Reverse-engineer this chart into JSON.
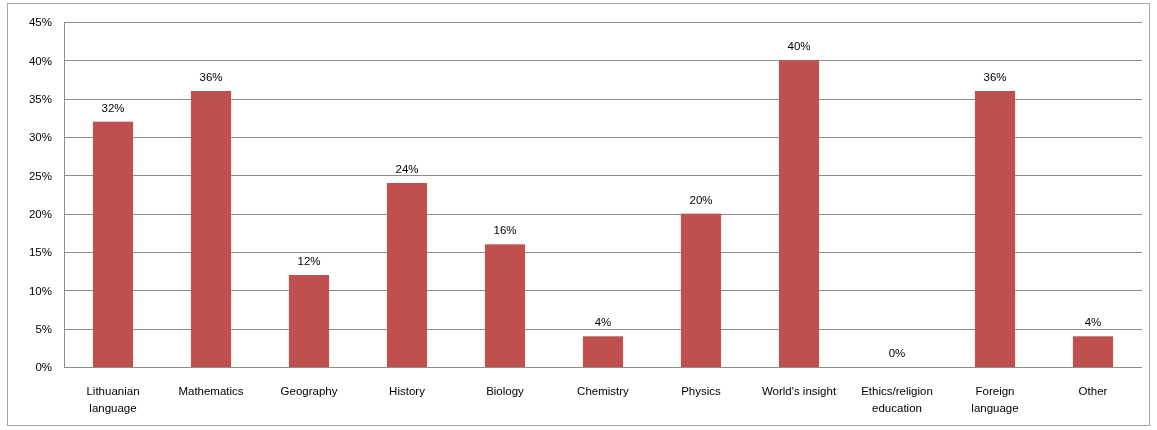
{
  "chart_data": {
    "type": "bar",
    "categories": [
      "Lithuanian language",
      "Mathematics",
      "Geography",
      "History",
      "Biology",
      "Chemistry",
      "Physics",
      "World's insight",
      "Ethics/religion education",
      "Foreign language",
      "Other"
    ],
    "values": [
      32,
      36,
      12,
      24,
      16,
      4,
      20,
      40,
      0,
      36,
      4
    ],
    "value_labels": [
      "32%",
      "36%",
      "12%",
      "24%",
      "16%",
      "4%",
      "20%",
      "40%",
      "0%",
      "36%",
      "4%"
    ],
    "color": "#c0504d",
    "ylim": [
      0,
      45
    ],
    "yticks": [
      {
        "value": 0,
        "label": "0%"
      },
      {
        "value": 5,
        "label": "5%"
      },
      {
        "value": 10,
        "label": "10%"
      },
      {
        "value": 15,
        "label": "15%"
      },
      {
        "value": 20,
        "label": "20%"
      },
      {
        "value": 25,
        "label": "25%"
      },
      {
        "value": 30,
        "label": "30%"
      },
      {
        "value": 35,
        "label": "35%"
      },
      {
        "value": 40,
        "label": "40%"
      },
      {
        "value": 45,
        "label": "45%"
      }
    ],
    "grid": "y"
  }
}
